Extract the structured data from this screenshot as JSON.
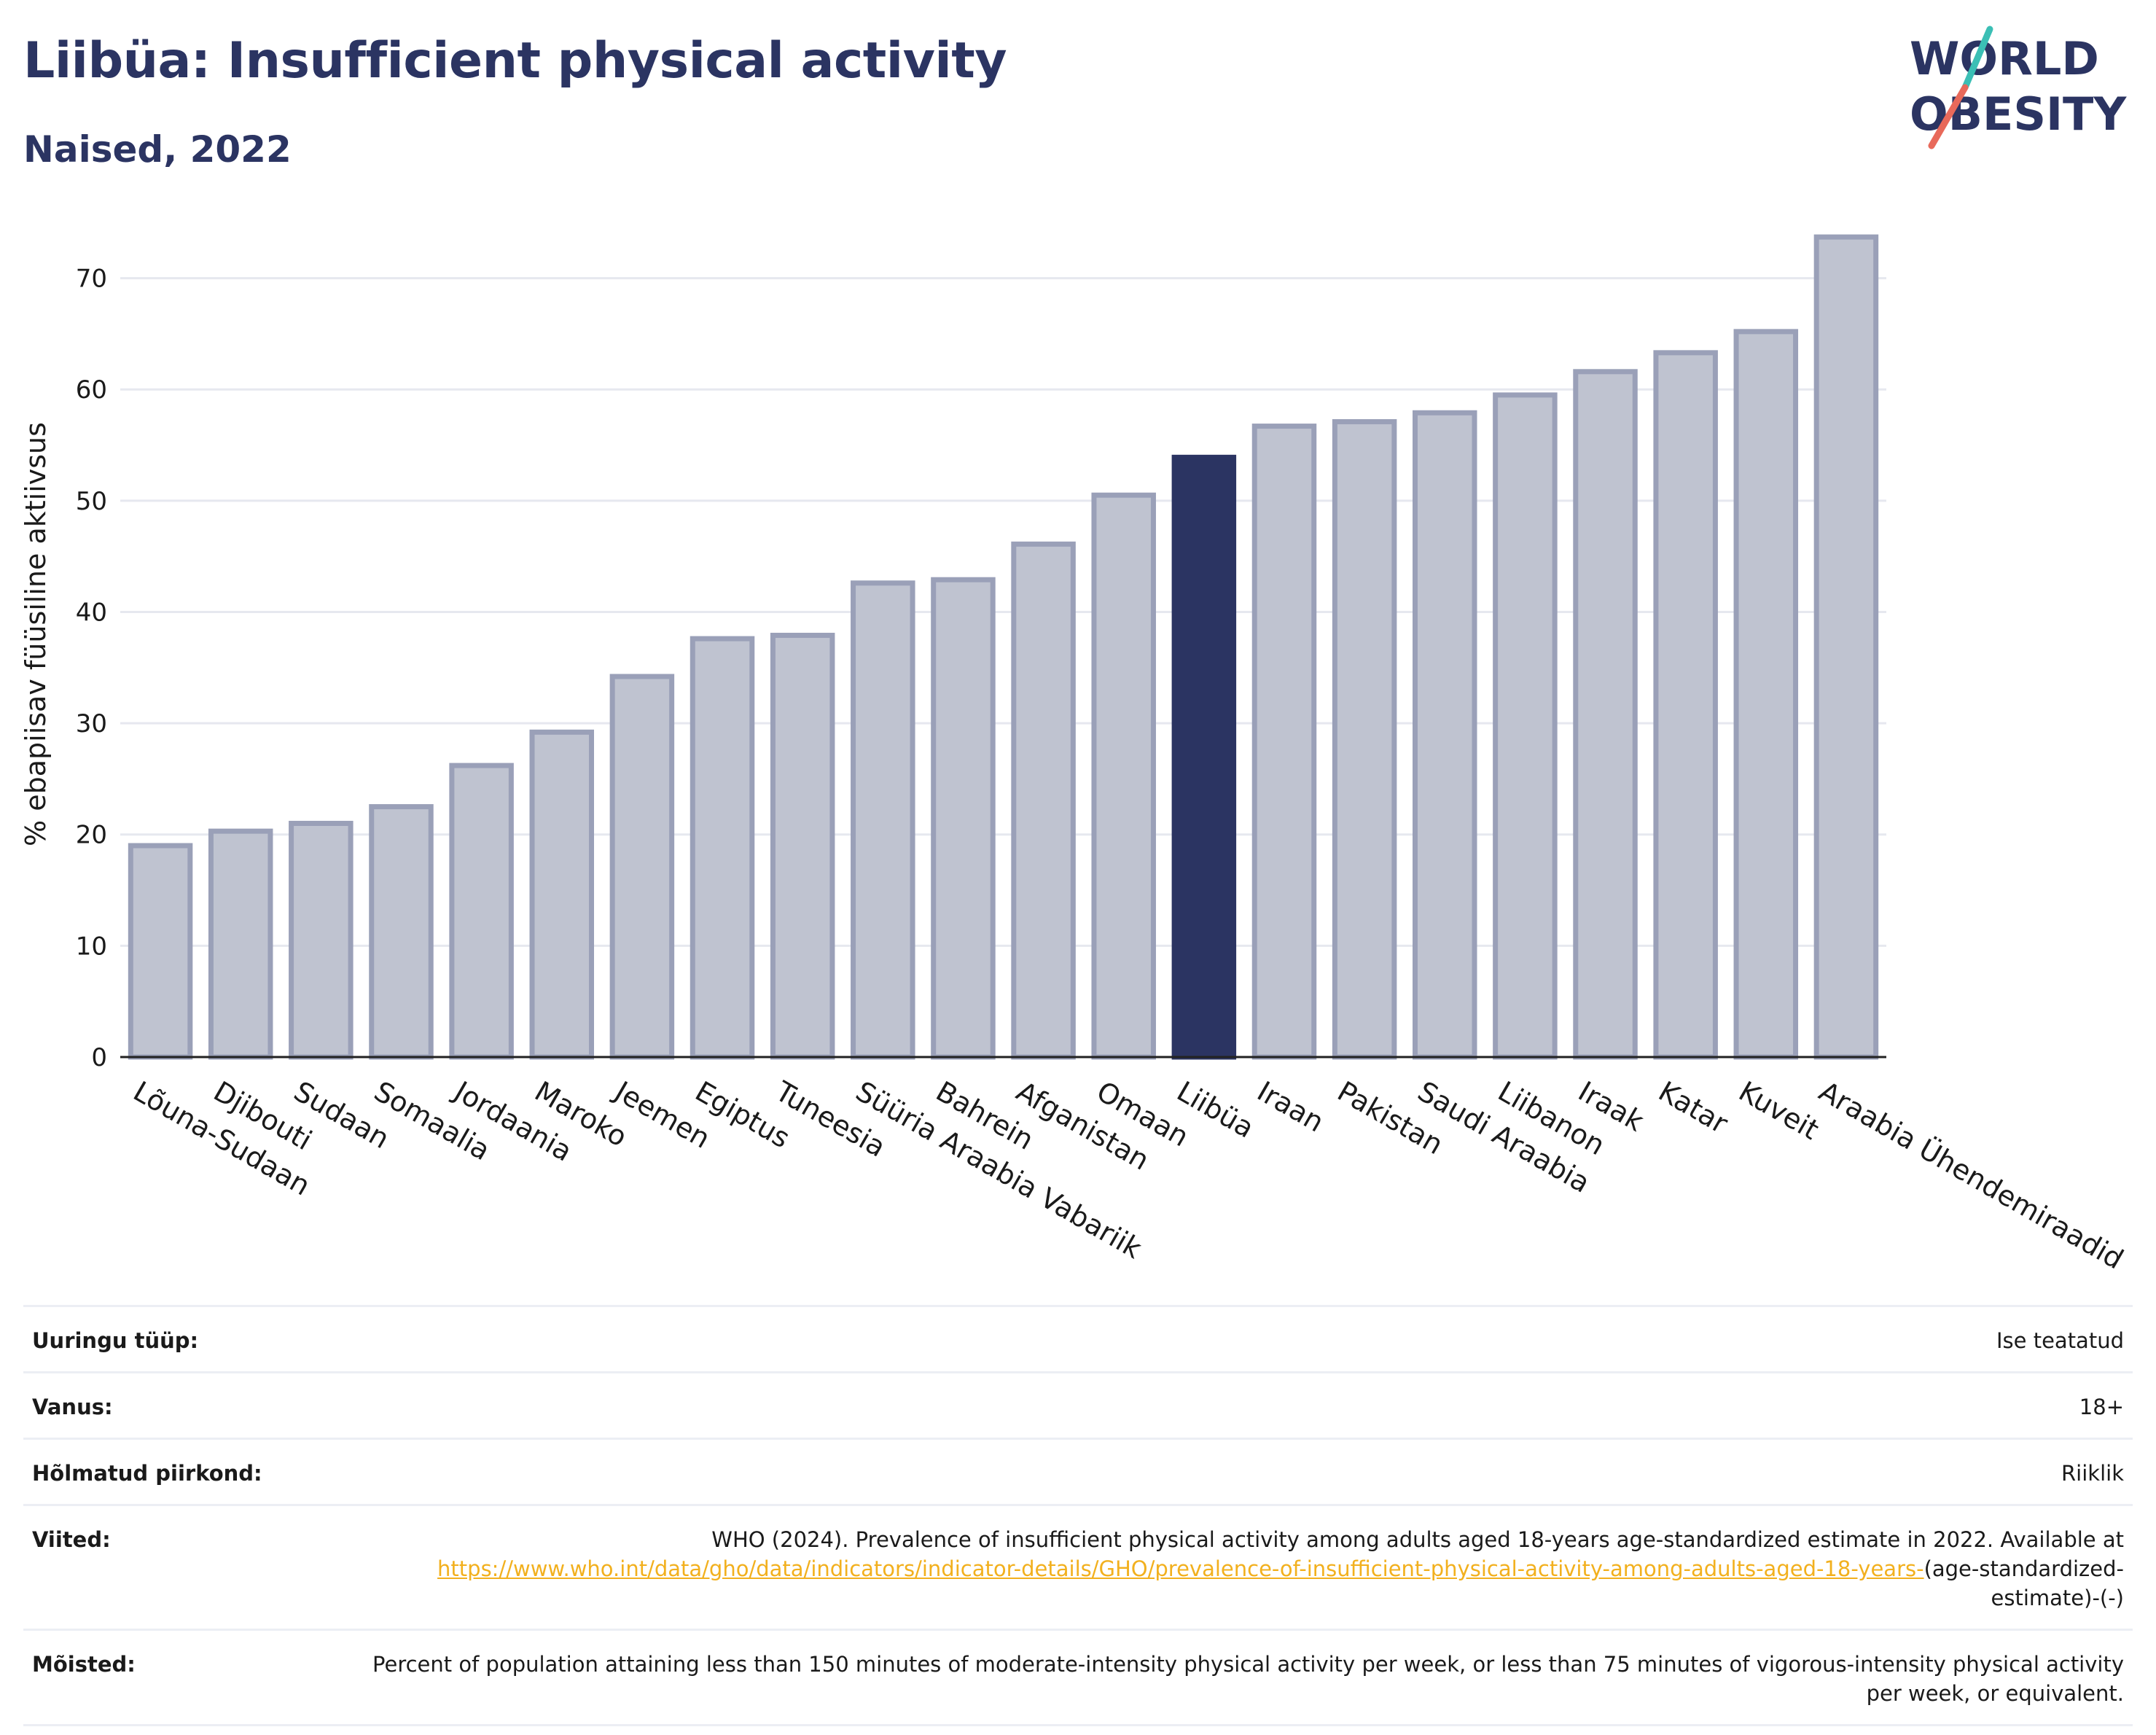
{
  "title": "Liibüa: Insufficient physical activity",
  "subtitle": "Naised, 2022",
  "logo": {
    "line1": "WORLD",
    "line2": "OBESITY",
    "accent_teal": "#3bbfb5",
    "accent_red": "#e8695a"
  },
  "colors": {
    "highlight": "#2b3462",
    "bar": "#bfc3d0",
    "bar_border": "#9aa0b8",
    "grid": "#e6e8ef"
  },
  "chart_data": {
    "type": "bar",
    "ylabel": "% ebapiisav füüsiline aktiivsus",
    "ylim": [
      0,
      76
    ],
    "yticks": [
      0,
      10,
      20,
      30,
      40,
      50,
      60,
      70
    ],
    "grid": true,
    "highlight": "Liibüa",
    "categories": [
      "Lõuna-Sudaan",
      "Djibouti",
      "Sudaan",
      "Somaalia",
      "Jordaania",
      "Maroko",
      "Jeemen",
      "Egiptus",
      "Tuneesia",
      "Süüria Araabia Vabariik",
      "Bahrein",
      "Afganistan",
      "Omaan",
      "Liibüa",
      "Iraan",
      "Pakistan",
      "Saudi Araabia",
      "Liibanon",
      "Iraak",
      "Katar",
      "Kuveit",
      "Araabia Ühendemiraadid"
    ],
    "values": [
      19.0,
      20.3,
      21.0,
      22.5,
      26.2,
      29.2,
      34.2,
      37.6,
      37.9,
      42.6,
      42.9,
      46.1,
      50.5,
      53.9,
      56.7,
      57.1,
      57.9,
      59.5,
      61.6,
      63.3,
      65.2,
      73.7
    ]
  },
  "info": {
    "survey_type_label": "Uuringu tüüp:",
    "survey_type_value": "Ise teatatud",
    "age_label": "Vanus:",
    "age_value": "18+",
    "region_label": "Hõlmatud piirkond:",
    "region_value": "Riiklik",
    "refs_label": "Viited:",
    "refs_text": "WHO (2024). Prevalence of insufficient physical activity among adults aged 18-years age-standardized estimate in 2022. Available at",
    "refs_link": "https://www.who.int/data/gho/data/indicators/indicator-details/GHO/prevalence-of-insufficient-physical-activity-among-adults-aged-18-years-",
    "refs_tail": "(age-standardized-estimate)-(-)",
    "defs_label": "Mõisted:",
    "defs_text": "Percent of population attaining less than 150 minutes of moderate-intensity physical activity per week, or less than 75 minutes of vigorous-intensity physical activity per week, or equivalent."
  }
}
